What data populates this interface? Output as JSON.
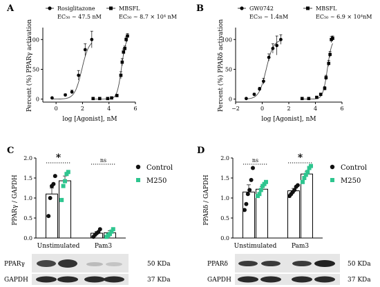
{
  "colors": {
    "control": "#111111",
    "m250": "#2ec58f"
  },
  "chart_data": [
    {
      "type": "scatter",
      "panel_label": "A",
      "xlabel": "log [Agonist], nM",
      "ylabel": "Percent (%) PPARγ activation",
      "xlim": [
        -1,
        6
      ],
      "ylim": [
        -5,
        120
      ],
      "xticks": [
        "0",
        "2",
        "4",
        "6"
      ],
      "yticks": [
        "0",
        "50",
        "100"
      ],
      "series": [
        {
          "name": "Rosiglitazone",
          "ec50": "EC₅₀ ~ 47.5 nM",
          "marker": "circle",
          "x": [
            -0.3,
            0.7,
            1.2,
            1.7,
            2.2,
            2.7
          ],
          "y": [
            2,
            7,
            12,
            40,
            83,
            100
          ],
          "err": [
            1,
            2,
            3,
            8,
            10,
            14
          ]
        },
        {
          "name": "MBSFL",
          "ec50": "EC₅₀ ~ 8.7 × 10⁴ nM",
          "marker": "square",
          "x": [
            2.8,
            3.3,
            3.9,
            4.2,
            4.6,
            4.9,
            5.0,
            5.1,
            5.2,
            5.3,
            5.4
          ],
          "y": [
            1,
            1,
            1,
            2,
            6,
            40,
            62,
            79,
            85,
            100,
            106
          ],
          "err": [
            1,
            1,
            1,
            1,
            2,
            6,
            6,
            5,
            4,
            4,
            4
          ]
        }
      ]
    },
    {
      "type": "scatter",
      "panel_label": "B",
      "xlabel": "log [Agonist], nM",
      "ylabel": "Percent (%) PPARδ activation",
      "xlim": [
        -2,
        6
      ],
      "ylim": [
        -5,
        120
      ],
      "xticks": [
        "−2",
        "0",
        "2",
        "4",
        "6"
      ],
      "yticks": [
        "0",
        "50",
        "100"
      ],
      "series": [
        {
          "name": "GW0742",
          "ec50": "EC₅₀ ~ 1.4nM",
          "marker": "circle",
          "x": [
            -1.2,
            -0.6,
            -0.2,
            0.1,
            0.5,
            0.8,
            1.1,
            1.4
          ],
          "y": [
            1,
            8,
            17,
            30,
            70,
            85,
            90,
            100
          ],
          "err": [
            1,
            2,
            3,
            5,
            6,
            8,
            16,
            8
          ]
        },
        {
          "name": "MBSFL",
          "ec50": "EC₅₀ ~ 6.9 × 10⁴nM",
          "marker": "square",
          "x": [
            3.0,
            3.5,
            4.1,
            4.4,
            4.7,
            4.8,
            5.0,
            5.1,
            5.2,
            5.3
          ],
          "y": [
            1,
            1,
            3,
            8,
            18,
            36,
            60,
            75,
            100,
            102
          ],
          "err": [
            1,
            1,
            1,
            2,
            3,
            4,
            5,
            5,
            5,
            4
          ]
        }
      ]
    },
    {
      "type": "bar",
      "panel_label": "C",
      "ylabel": "PPARγ / GAPDH",
      "ylim": [
        0,
        2.0
      ],
      "yticks": [
        "0.0",
        "0.5",
        "1.0",
        "1.5",
        "2.0"
      ],
      "categories": [
        "Unstimulated",
        "Pam3"
      ],
      "series": [
        {
          "name": "Control",
          "values": [
            1.1,
            0.12
          ],
          "err": [
            0.15,
            0.04
          ],
          "points": [
            [
              0.55,
              1.0,
              1.3,
              1.35,
              1.55
            ],
            [
              0.03,
              0.08,
              0.12,
              0.15,
              0.22
            ]
          ]
        },
        {
          "name": "M250",
          "values": [
            1.43,
            0.13
          ],
          "err": [
            0.12,
            0.05
          ],
          "points": [
            [
              0.95,
              1.3,
              1.42,
              1.6,
              1.65
            ],
            [
              0.03,
              0.07,
              0.1,
              0.16,
              0.22
            ]
          ]
        }
      ],
      "significance": [
        "*",
        "ns"
      ],
      "blot_labels": [
        "PPARγ",
        "GAPDH"
      ],
      "blot_sizes": [
        "50 KDa",
        "37 KDa"
      ]
    },
    {
      "type": "bar",
      "panel_label": "D",
      "ylabel": "PPARδ / GAPDH",
      "ylim": [
        0,
        2.0
      ],
      "yticks": [
        "0.0",
        "0.5",
        "1.0",
        "1.5",
        "2.0"
      ],
      "categories": [
        "Unstimulated",
        "Pam3"
      ],
      "series": [
        {
          "name": "Control",
          "values": [
            1.15,
            1.18
          ],
          "err": [
            0.18,
            0.06
          ],
          "points": [
            [
              0.7,
              0.85,
              1.1,
              1.2,
              1.45,
              1.75
            ],
            [
              1.05,
              1.1,
              1.15,
              1.2,
              1.28,
              1.32
            ]
          ]
        },
        {
          "name": "M250",
          "values": [
            1.22,
            1.6
          ],
          "err": [
            0.07,
            0.07
          ],
          "points": [
            [
              1.05,
              1.1,
              1.2,
              1.3,
              1.35,
              1.4
            ],
            [
              1.4,
              1.5,
              1.58,
              1.65,
              1.75,
              1.8
            ]
          ]
        }
      ],
      "significance": [
        "ns",
        "*"
      ],
      "blot_labels": [
        "PPARδ",
        "GAPDH"
      ],
      "blot_sizes": [
        "50 KDa",
        "37 KDa"
      ]
    }
  ]
}
